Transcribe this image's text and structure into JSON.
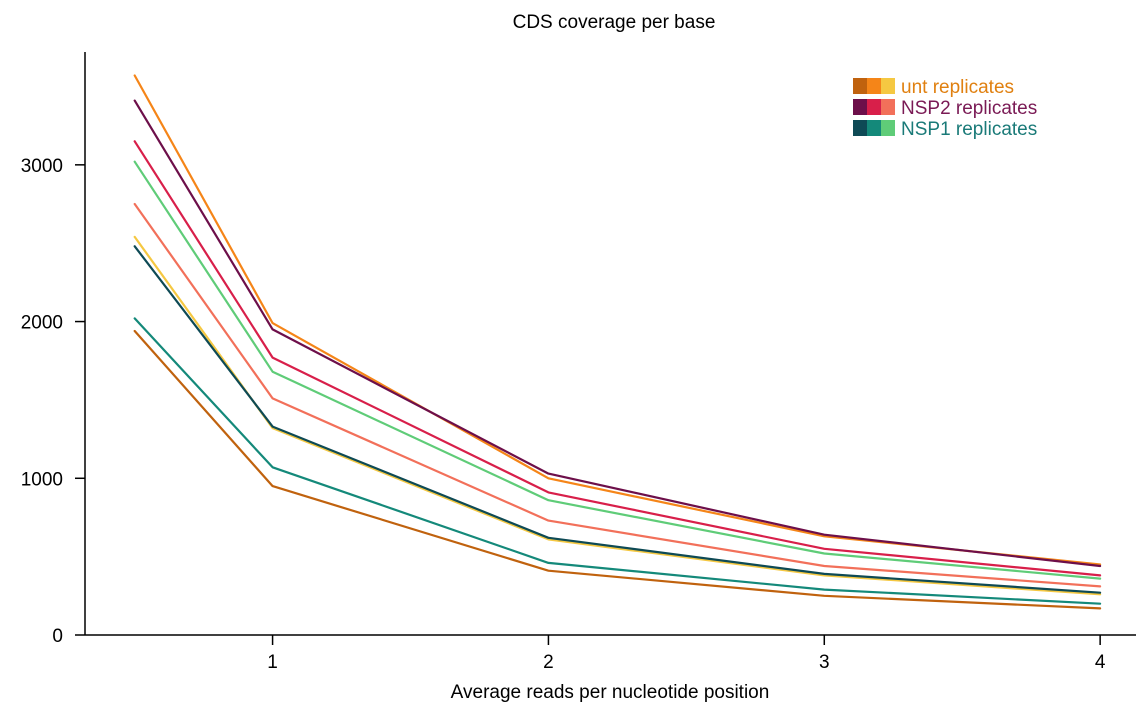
{
  "chart_data": {
    "type": "line",
    "title": "CDS coverage per base",
    "xlabel": "Average reads per nucleotide position",
    "ylabel": "",
    "x": [
      0.5,
      1,
      2,
      3,
      4
    ],
    "xticks": [
      1,
      2,
      3,
      4
    ],
    "yticks": [
      0,
      1000,
      2000,
      3000
    ],
    "xlim": [
      0.32,
      4.13
    ],
    "ylim": [
      0,
      3720
    ],
    "grid": false,
    "legend_placement": "top-right",
    "legend": [
      {
        "label": "unt replicates",
        "swatches": [
          "#c0620e",
          "#f58518",
          "#f5c842"
        ],
        "text_color": "#e08010"
      },
      {
        "label": "NSP2 replicates",
        "swatches": [
          "#6d0f4a",
          "#d81f4a",
          "#f2705a"
        ],
        "text_color": "#7a1a55"
      },
      {
        "label": "NSP1 replicates",
        "swatches": [
          "#0e4a55",
          "#14897a",
          "#5fcc78"
        ],
        "text_color": "#1a7a78"
      }
    ],
    "series": [
      {
        "color": "#f58518",
        "values": [
          3570,
          1990,
          1000,
          630,
          450
        ]
      },
      {
        "color": "#6d0f4a",
        "values": [
          3410,
          1950,
          1030,
          640,
          440
        ]
      },
      {
        "color": "#d81f4a",
        "values": [
          3150,
          1770,
          910,
          550,
          380
        ]
      },
      {
        "color": "#5fcc78",
        "values": [
          3020,
          1680,
          860,
          520,
          360
        ]
      },
      {
        "color": "#f2705a",
        "values": [
          2750,
          1510,
          730,
          440,
          310
        ]
      },
      {
        "color": "#f5c842",
        "values": [
          2540,
          1320,
          610,
          380,
          260
        ]
      },
      {
        "color": "#0e4a55",
        "values": [
          2480,
          1330,
          620,
          390,
          270
        ]
      },
      {
        "color": "#14897a",
        "values": [
          2020,
          1070,
          460,
          290,
          200
        ]
      },
      {
        "color": "#c0620e",
        "values": [
          1940,
          950,
          410,
          250,
          170
        ]
      }
    ]
  }
}
